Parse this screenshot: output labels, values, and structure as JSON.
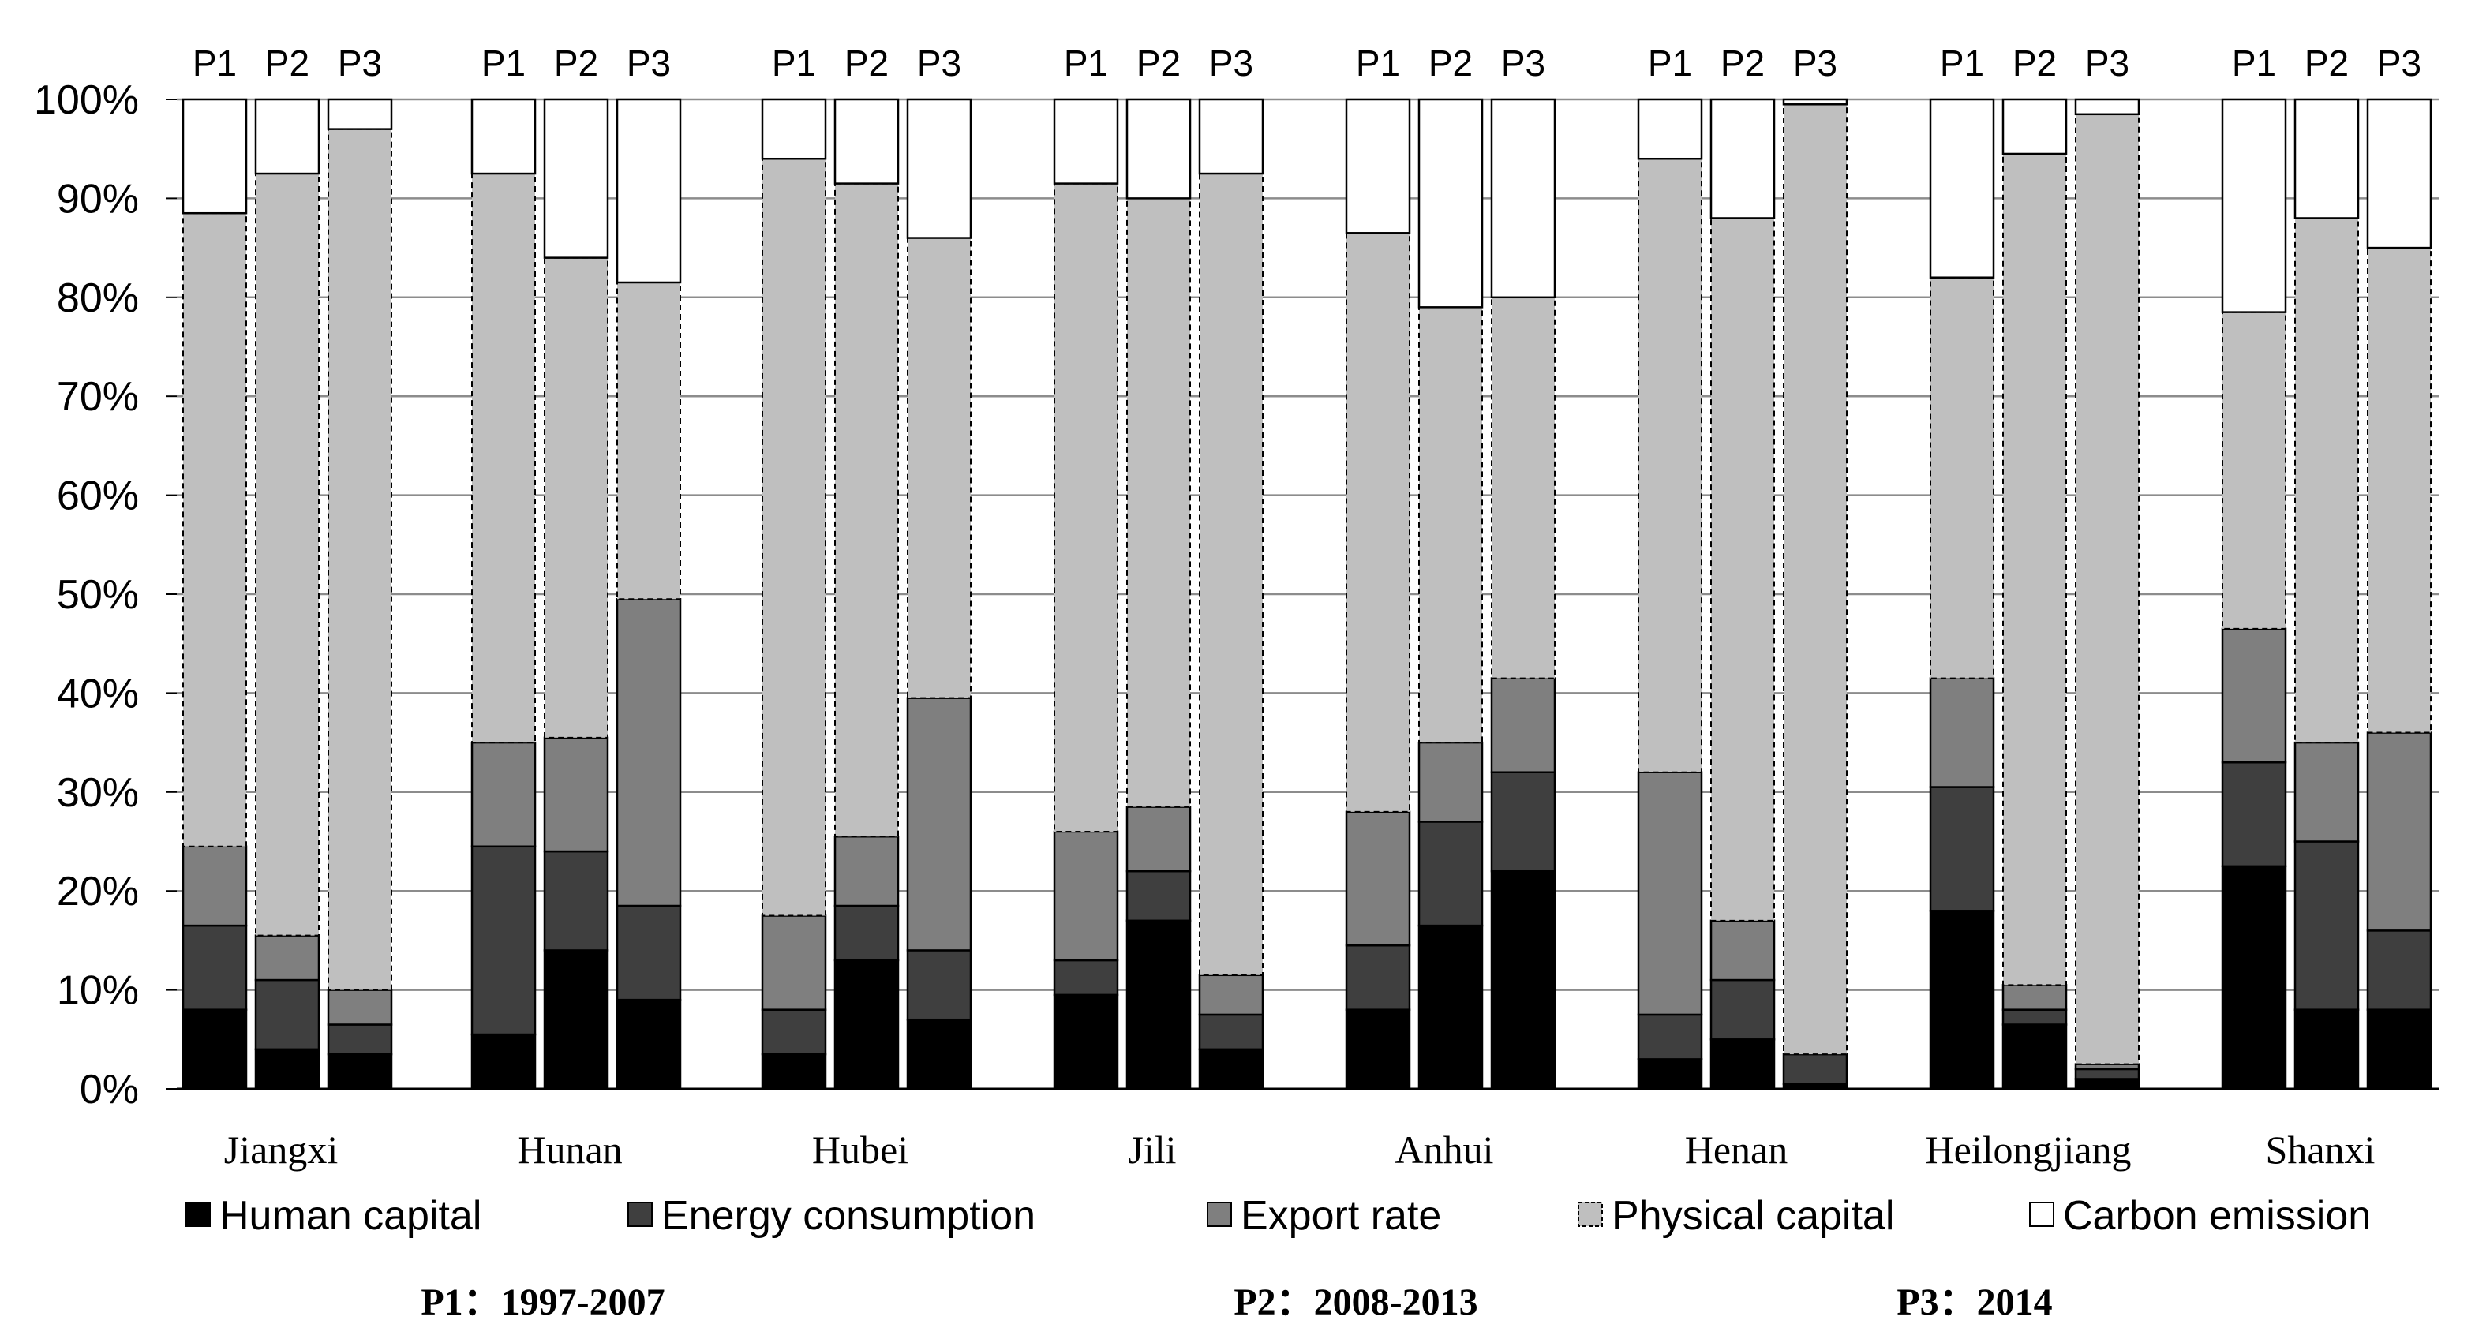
{
  "chart_data": {
    "type": "stacked-bar",
    "title": "",
    "xlabel": "",
    "ylabel": "",
    "ylim": [
      0,
      100
    ],
    "y_tick_labels": [
      "0%",
      "10%",
      "20%",
      "30%",
      "40%",
      "50%",
      "60%",
      "70%",
      "80%",
      "90%",
      "100%"
    ],
    "y_tick_values": [
      0,
      10,
      20,
      30,
      40,
      50,
      60,
      70,
      80,
      90,
      100
    ],
    "grid": true,
    "legend_position": "bottom",
    "period_labels": [
      "P1",
      "P2",
      "P3"
    ],
    "periods_note": [
      "P1：1997-2007",
      "P2：2008-2013",
      "P3：2014"
    ],
    "components": [
      {
        "name": "Human capital",
        "color": "#000000"
      },
      {
        "name": "Energy consumption",
        "color": "#3f3f3f"
      },
      {
        "name": "Export rate",
        "color": "#7f7f7f"
      },
      {
        "name": "Physical capital",
        "color": "#bfbfbf"
      },
      {
        "name": "Carbon emission",
        "color": "#ffffff"
      }
    ],
    "groups": [
      {
        "name": "Jiangxi",
        "bars": [
          {
            "period": "P1",
            "values": [
              8,
              8.5,
              8,
              64,
              11.5
            ]
          },
          {
            "period": "P2",
            "values": [
              4,
              7,
              4.5,
              77,
              7.5
            ]
          },
          {
            "period": "P3",
            "values": [
              3.5,
              3,
              3.5,
              87,
              3
            ]
          }
        ]
      },
      {
        "name": "Hunan",
        "bars": [
          {
            "period": "P1",
            "values": [
              5.5,
              19,
              10.5,
              57.5,
              7.5
            ]
          },
          {
            "period": "P2",
            "values": [
              14,
              10,
              11.5,
              48.5,
              16
            ]
          },
          {
            "period": "P3",
            "values": [
              9,
              9.5,
              31,
              32,
              18.5
            ]
          }
        ]
      },
      {
        "name": "Hubei",
        "bars": [
          {
            "period": "P1",
            "values": [
              3.5,
              4.5,
              9.5,
              76.5,
              6
            ]
          },
          {
            "period": "P2",
            "values": [
              13,
              5.5,
              7,
              66,
              8.5
            ]
          },
          {
            "period": "P3",
            "values": [
              7,
              7,
              25.5,
              46.5,
              14
            ]
          }
        ]
      },
      {
        "name": "Jili",
        "bars": [
          {
            "period": "P1",
            "values": [
              9.5,
              3.5,
              13,
              65.5,
              8.5
            ]
          },
          {
            "period": "P2",
            "values": [
              17,
              5,
              6.5,
              61.5,
              10
            ]
          },
          {
            "period": "P3",
            "values": [
              4,
              3.5,
              4,
              81,
              7.5
            ]
          }
        ]
      },
      {
        "name": "Anhui",
        "bars": [
          {
            "period": "P1",
            "values": [
              8,
              6.5,
              13.5,
              58.5,
              13.5
            ]
          },
          {
            "period": "P2",
            "values": [
              16.5,
              10.5,
              8,
              44,
              21
            ]
          },
          {
            "period": "P3",
            "values": [
              22,
              10,
              9.5,
              38.5,
              20
            ]
          }
        ]
      },
      {
        "name": "Henan",
        "bars": [
          {
            "period": "P1",
            "values": [
              3,
              4.5,
              24.5,
              62,
              6
            ]
          },
          {
            "period": "P2",
            "values": [
              5,
              6,
              6,
              71,
              12
            ]
          },
          {
            "period": "P3",
            "values": [
              0.5,
              3,
              0,
              96,
              0.5
            ]
          }
        ]
      },
      {
        "name": "Heilongjiang",
        "bars": [
          {
            "period": "P1",
            "values": [
              18,
              12.5,
              11,
              40.5,
              18
            ]
          },
          {
            "period": "P2",
            "values": [
              6.5,
              1.5,
              2.5,
              84,
              5.5
            ]
          },
          {
            "period": "P3",
            "values": [
              1,
              1,
              0.5,
              96,
              1.5
            ]
          }
        ]
      },
      {
        "name": "Shanxi",
        "bars": [
          {
            "period": "P1",
            "values": [
              22.5,
              10.5,
              13.5,
              32,
              21.5
            ]
          },
          {
            "period": "P2",
            "values": [
              8,
              17,
              10,
              53,
              12
            ]
          },
          {
            "period": "P3",
            "values": [
              8,
              8,
              20,
              49,
              15
            ]
          }
        ]
      }
    ]
  }
}
